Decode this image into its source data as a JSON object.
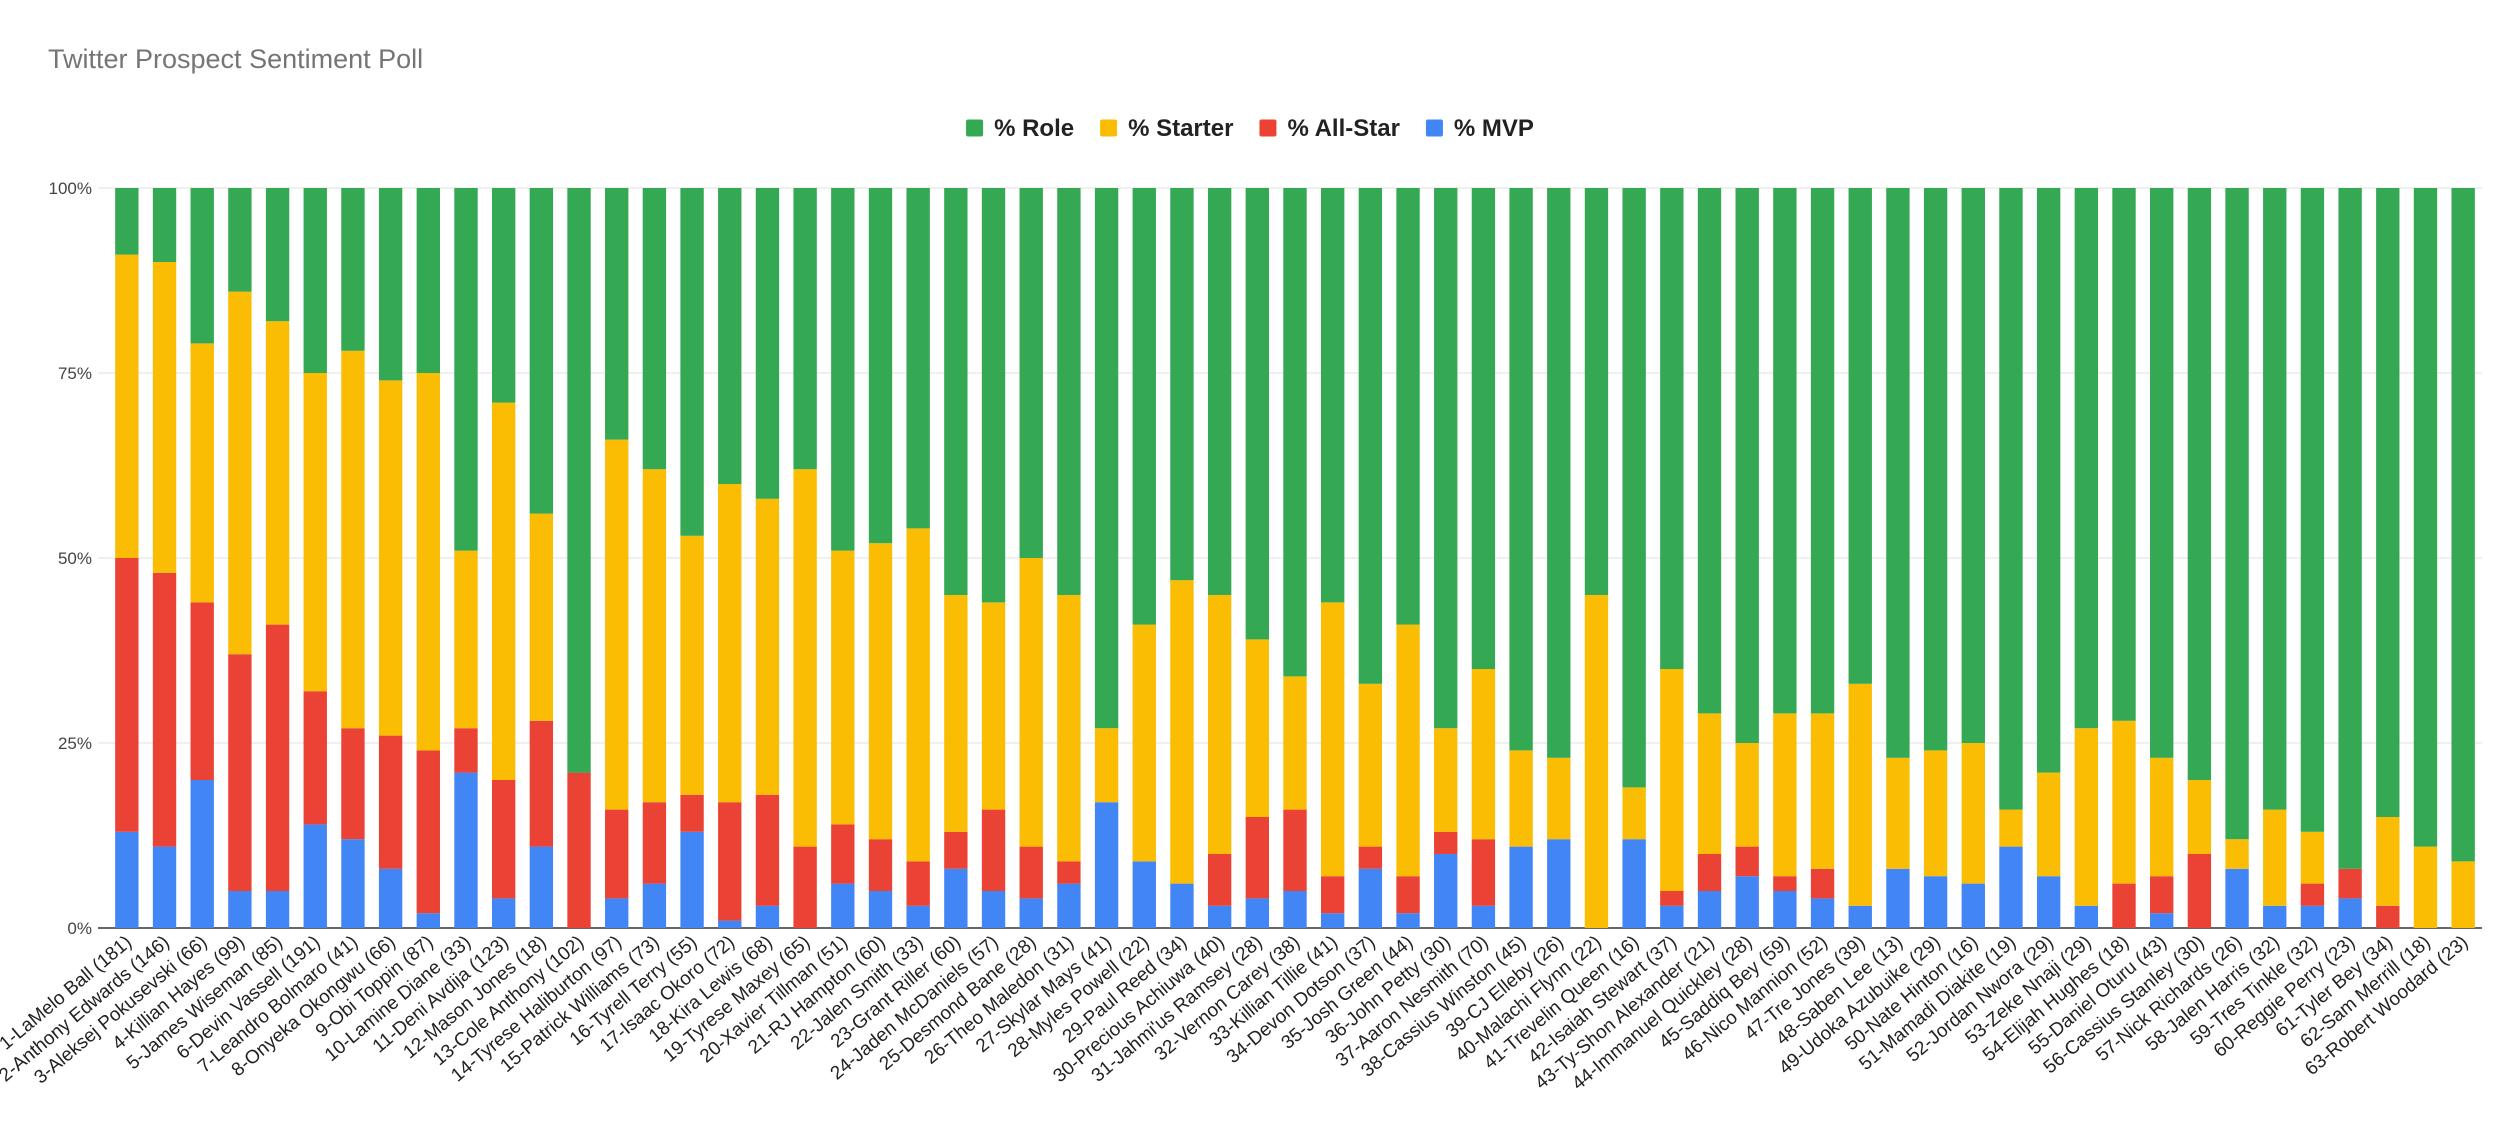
{
  "chart_data": {
    "type": "bar",
    "stacked": true,
    "normalized": true,
    "title": "Twitter Prospect Sentiment Poll",
    "xlabel": "",
    "ylabel": "",
    "ylim": [
      0,
      100
    ],
    "yticks": [
      "0%",
      "25%",
      "50%",
      "75%",
      "100%"
    ],
    "legend_position": "top-center",
    "categories": [
      "1-LaMelo Ball (181)",
      "2-Anthony Edwards (146)",
      "3-Aleksej Pokusevski (66)",
      "4-Killian Hayes (99)",
      "5-James Wiseman (85)",
      "6-Devin Vassell (191)",
      "7-Leandro Bolmaro (41)",
      "8-Onyeka Okongwu (66)",
      "9-Obi Toppin (87)",
      "10-Lamine Diane (33)",
      "11-Deni Avdija (123)",
      "12-Mason Jones (18)",
      "13-Cole Anthony (102)",
      "14-Tyrese Haliburton (97)",
      "15-Patrick Williams (73)",
      "16-Tyrell Terry (55)",
      "17-Isaac Okoro (72)",
      "18-Kira Lewis (68)",
      "19-Tyrese Maxey (65)",
      "20-Xavier Tillman (51)",
      "21-RJ Hampton (60)",
      "22-Jalen Smith (33)",
      "23-Grant Riller (60)",
      "24-Jaden McDaniels (57)",
      "25-Desmond Bane (28)",
      "26-Theo Maledon (31)",
      "27-Skylar Mays (41)",
      "28-Myles Powell (22)",
      "29-Paul Reed (34)",
      "30-Precious Achiuwa (40)",
      "31-Jahmi'us Ramsey (28)",
      "32-Vernon Carey (38)",
      "33-Killian Tillie (41)",
      "34-Devon Dotson (37)",
      "35-Josh Green (44)",
      "36-John Petty (30)",
      "37-Aaron Nesmith (70)",
      "38-Cassius Winston (45)",
      "39-CJ Elleby (26)",
      "40-Malachi Flynn (22)",
      "41-Trevelin Queen (16)",
      "42-Isaiah Stewart (37)",
      "43-Ty-Shon Alexander (21)",
      "44-Immanuel Quickley (28)",
      "45-Saddiq Bey (59)",
      "46-Nico Mannion (52)",
      "47-Tre Jones (39)",
      "48-Saben Lee (13)",
      "49-Udoka Azubuike (29)",
      "50-Nate Hinton (16)",
      "51-Mamadi Diakite (19)",
      "52-Jordan Nwora (29)",
      "53-Zeke Nnaji (29)",
      "54-Elijah Hughes (18)",
      "55-Daniel Oturu (43)",
      "56-Cassius Stanley (30)",
      "57-Nick Richards (26)",
      "58-Jalen Harris (32)",
      "59-Tres Tinkle (32)",
      "60-Reggie Perry (23)",
      "61-Tyler Bey (34)",
      "62-Sam Merrill (18)",
      "63-Robert Woodard (23)"
    ],
    "series": [
      {
        "name": "% MVP",
        "color": "#4285f4",
        "values": [
          13,
          11,
          20,
          5,
          5,
          14,
          12,
          8,
          2,
          21,
          4,
          11,
          0,
          4,
          6,
          13,
          1,
          3,
          0,
          6,
          5,
          3,
          8,
          5,
          4,
          6,
          17,
          9,
          6,
          3,
          4,
          5,
          2,
          8,
          2,
          10,
          3,
          11,
          12,
          0,
          12,
          3,
          5,
          7,
          5,
          4,
          3,
          8,
          7,
          6,
          11,
          7,
          3,
          0,
          2,
          0,
          8,
          3,
          3,
          4,
          0,
          0,
          0
        ]
      },
      {
        "name": "% All-Star",
        "color": "#ea4335",
        "values": [
          37,
          37,
          24,
          32,
          36,
          18,
          15,
          18,
          22,
          6,
          16,
          17,
          21,
          12,
          11,
          5,
          16,
          15,
          11,
          8,
          7,
          6,
          5,
          11,
          7,
          3,
          0,
          0,
          0,
          7,
          11,
          11,
          5,
          3,
          5,
          3,
          9,
          0,
          0,
          0,
          0,
          2,
          5,
          4,
          2,
          4,
          0,
          0,
          0,
          0,
          0,
          0,
          0,
          6,
          5,
          10,
          0,
          0,
          3,
          4,
          3,
          0,
          0
        ]
      },
      {
        "name": "% Starter",
        "color": "#fbbc04",
        "values": [
          41,
          42,
          35,
          49,
          41,
          43,
          51,
          48,
          51,
          24,
          51,
          28,
          0,
          50,
          45,
          35,
          43,
          40,
          51,
          37,
          40,
          45,
          32,
          28,
          39,
          36,
          10,
          32,
          41,
          35,
          24,
          18,
          37,
          22,
          34,
          14,
          23,
          13,
          11,
          45,
          7,
          30,
          19,
          14,
          22,
          21,
          30,
          15,
          17,
          19,
          5,
          14,
          24,
          22,
          16,
          10,
          4,
          13,
          7,
          0,
          12,
          11,
          9
        ]
      },
      {
        "name": "% Role",
        "color": "#34a853",
        "values": [
          9,
          10,
          21,
          14,
          18,
          25,
          22,
          26,
          25,
          49,
          29,
          44,
          79,
          34,
          38,
          47,
          40,
          42,
          38,
          49,
          48,
          46,
          55,
          56,
          50,
          55,
          73,
          59,
          53,
          55,
          61,
          66,
          56,
          67,
          59,
          73,
          65,
          76,
          77,
          55,
          81,
          65,
          71,
          75,
          71,
          71,
          67,
          77,
          76,
          75,
          84,
          79,
          73,
          72,
          77,
          80,
          88,
          84,
          87,
          92,
          85,
          89,
          91
        ]
      }
    ]
  }
}
